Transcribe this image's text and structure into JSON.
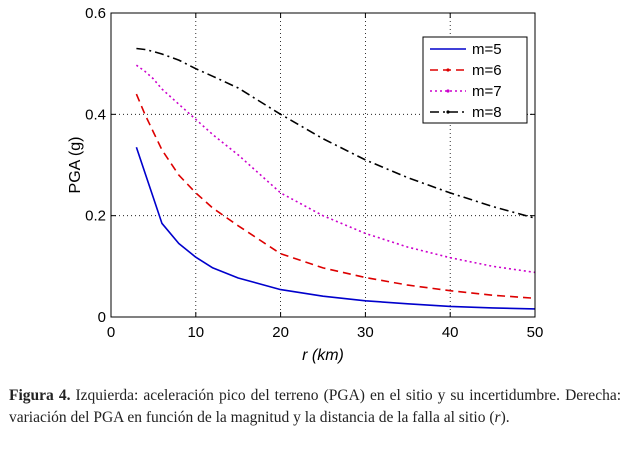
{
  "chart_data": {
    "type": "line",
    "xlabel": "r (km)",
    "ylabel": "PGA (g)",
    "xlim": [
      0,
      50
    ],
    "ylim": [
      0,
      0.6
    ],
    "xticks": [
      0,
      10,
      20,
      30,
      40,
      50
    ],
    "yticks": [
      0,
      0.2,
      0.4,
      0.6
    ],
    "xtick_labels": [
      "0",
      "10",
      "20",
      "30",
      "40",
      "50"
    ],
    "ytick_labels": [
      "0",
      "0.2",
      "0.4",
      "0.6"
    ],
    "grid": "dotted",
    "legend_position": "top-right",
    "x": [
      3,
      4,
      5,
      6,
      8,
      10,
      12,
      15,
      20,
      25,
      30,
      35,
      40,
      45,
      50
    ],
    "series": [
      {
        "name": "m=5",
        "color": "#0000cc",
        "dash": "solid",
        "values": [
          0.335,
          0.285,
          0.235,
          0.185,
          0.145,
          0.118,
          0.097,
          0.077,
          0.054,
          0.041,
          0.032,
          0.026,
          0.021,
          0.018,
          0.016
        ]
      },
      {
        "name": "m=6",
        "color": "#dd0000",
        "dash": "dashed",
        "values": [
          0.44,
          0.4,
          0.365,
          0.33,
          0.28,
          0.245,
          0.215,
          0.18,
          0.125,
          0.097,
          0.078,
          0.063,
          0.052,
          0.043,
          0.037
        ]
      },
      {
        "name": "m=7",
        "color": "#cc00cc",
        "dash": "dotted",
        "values": [
          0.497,
          0.485,
          0.47,
          0.45,
          0.42,
          0.39,
          0.36,
          0.32,
          0.245,
          0.2,
          0.165,
          0.138,
          0.117,
          0.1,
          0.088
        ]
      },
      {
        "name": "m=8",
        "color": "#000000",
        "dash": "dashdot",
        "values": [
          0.53,
          0.528,
          0.524,
          0.519,
          0.507,
          0.49,
          0.475,
          0.452,
          0.4,
          0.352,
          0.31,
          0.275,
          0.245,
          0.218,
          0.195
        ]
      }
    ]
  },
  "caption": {
    "label": "Figura 4.",
    "text": "Izquierda: aceleración pico del terreno (PGA) en el sitio y su incertidumbre. Derecha: variación del PGA en función de la magnitud y la distancia de la falla al sitio (",
    "symbol": "r",
    "end": ")."
  }
}
